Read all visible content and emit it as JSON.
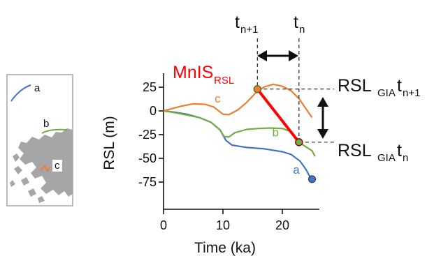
{
  "chart_data": {
    "type": "line",
    "xlabel": "Time (ka)",
    "ylabel": "RSL (m)",
    "xlim": [
      0,
      26
    ],
    "ylim": [
      -82,
      38
    ],
    "xticks": [
      0,
      10,
      20
    ],
    "yticks": [
      25,
      0,
      -25,
      -50,
      -75
    ],
    "grid": false,
    "series": [
      {
        "name": "a",
        "color": "#4472c4",
        "points": [
          [
            0,
            0
          ],
          [
            2,
            -1.5
          ],
          [
            4,
            -3.5
          ],
          [
            6,
            -7
          ],
          [
            8,
            -12
          ],
          [
            9.5,
            -20
          ],
          [
            10.5,
            -31
          ],
          [
            11.5,
            -36
          ],
          [
            14,
            -38.5
          ],
          [
            17,
            -40
          ],
          [
            20,
            -43
          ],
          [
            21.5,
            -46
          ],
          [
            23,
            -53
          ],
          [
            24,
            -62
          ],
          [
            24.6,
            -69
          ],
          [
            25,
            -72
          ]
        ]
      },
      {
        "name": "b",
        "color": "#70ad47",
        "points": [
          [
            0,
            0
          ],
          [
            2,
            -2
          ],
          [
            4,
            -4.5
          ],
          [
            6,
            -7
          ],
          [
            8,
            -12
          ],
          [
            9.5,
            -20
          ],
          [
            10.2,
            -27
          ],
          [
            11,
            -27.5
          ],
          [
            12,
            -23
          ],
          [
            14,
            -19.5
          ],
          [
            16,
            -18.5
          ],
          [
            18,
            -18
          ],
          [
            20,
            -18.5
          ],
          [
            21.5,
            -22
          ],
          [
            22.8,
            -33
          ],
          [
            24,
            -38
          ],
          [
            25,
            -42
          ],
          [
            25.5,
            -48
          ]
        ]
      },
      {
        "name": "c",
        "color": "#ed7d31",
        "points": [
          [
            0,
            0
          ],
          [
            1.5,
            2.5
          ],
          [
            3,
            5
          ],
          [
            5,
            7.5
          ],
          [
            7,
            7
          ],
          [
            8.5,
            4
          ],
          [
            10,
            -3.5
          ],
          [
            11,
            -4
          ],
          [
            12.5,
            1
          ],
          [
            14,
            9
          ],
          [
            15.5,
            19
          ],
          [
            17,
            25.5
          ],
          [
            18.5,
            28
          ],
          [
            20,
            26
          ],
          [
            21.5,
            21
          ],
          [
            22.8,
            13
          ],
          [
            24,
            2
          ],
          [
            25,
            -7
          ]
        ]
      }
    ],
    "mnis": {
      "label_main": "MnIS",
      "label_sub": "RSL",
      "color": "#ff0000",
      "start": [
        15.8,
        23
      ],
      "end": [
        22.8,
        -33
      ]
    },
    "annotations": {
      "t_top_main": "t",
      "t_top_sub_left": "n+1",
      "t_top_sub_right": "n",
      "rsl_main": "RSL",
      "rsl_sub": "GIA",
      "rsl_t": "t",
      "rsl_top_t_sub": "n+1",
      "rsl_bottom_t_sub": "n"
    }
  },
  "inset_map": {
    "labels": [
      "a",
      "b",
      "c"
    ],
    "label_colors": [
      "#4472c4",
      "#70ad47",
      "#ed7d31"
    ],
    "land_color": "#a6a6a6",
    "frame_color": "#a6a6a6"
  }
}
